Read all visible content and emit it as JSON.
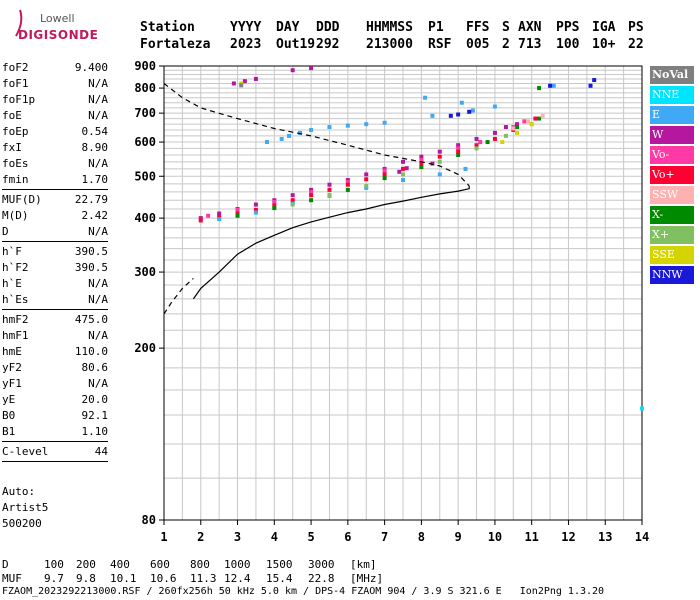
{
  "logo": {
    "line1": "Lowell",
    "line2": "DIGISONDE"
  },
  "header": {
    "labels": [
      "Station",
      "YYYY",
      "DAY",
      "DDD",
      "HHMMSS",
      "P1",
      "FFS",
      "S",
      "AXN",
      "PPS",
      "IGA",
      "PS"
    ],
    "values": [
      "Fortaleza",
      "2023",
      "Out19",
      "292",
      "213000",
      "RSF",
      "005",
      "2",
      "713",
      "100",
      "10+",
      "22"
    ]
  },
  "params": {
    "group1": [
      {
        "k": "foF2",
        "v": "9.400"
      },
      {
        "k": "foF1",
        "v": "N/A"
      },
      {
        "k": "foF1p",
        "v": "N/A"
      },
      {
        "k": "foE",
        "v": "N/A"
      },
      {
        "k": "foEp",
        "v": "0.54"
      },
      {
        "k": "fxI",
        "v": "8.90"
      },
      {
        "k": "foEs",
        "v": "N/A"
      },
      {
        "k": "fmin",
        "v": "1.70"
      }
    ],
    "group2": [
      {
        "k": "MUF(D)",
        "v": "22.79"
      },
      {
        "k": "M(D)",
        "v": "2.42"
      },
      {
        "k": "D",
        "v": "N/A"
      }
    ],
    "group3": [
      {
        "k": "h`F",
        "v": "390.5"
      },
      {
        "k": "h`F2",
        "v": "390.5"
      },
      {
        "k": "h`E",
        "v": "N/A"
      },
      {
        "k": "h`Es",
        "v": "N/A"
      }
    ],
    "group4": [
      {
        "k": "hmF2",
        "v": "475.0"
      },
      {
        "k": "hmF1",
        "v": "N/A"
      },
      {
        "k": "hmE",
        "v": "110.0"
      },
      {
        "k": "yF2",
        "v": "80.6"
      },
      {
        "k": "yF1",
        "v": "N/A"
      },
      {
        "k": "yE",
        "v": "20.0"
      },
      {
        "k": "B0",
        "v": "92.1"
      },
      {
        "k": "B1",
        "v": "1.10"
      }
    ],
    "group5": [
      {
        "k": "C-level",
        "v": "44"
      }
    ]
  },
  "auto": {
    "line1": "Auto:",
    "line2": "Artist5",
    "line3": "500200"
  },
  "legend": [
    {
      "label": "NoVal",
      "color": "#7f7f7f"
    },
    {
      "label": "NNE",
      "color": "#00e5ff"
    },
    {
      "label": "E",
      "color": "#3fa9f5"
    },
    {
      "label": "W",
      "color": "#b5179e"
    },
    {
      "label": "Vo-",
      "color": "#ff3aa6"
    },
    {
      "label": "Vo+",
      "color": "#ff0033"
    },
    {
      "label": "SSW",
      "color": "#ffb0b0"
    },
    {
      "label": "X-",
      "color": "#008a00"
    },
    {
      "label": "X+",
      "color": "#80c060"
    },
    {
      "label": "SSE",
      "color": "#d4d400"
    },
    {
      "label": "NNW",
      "color": "#1a18d8"
    }
  ],
  "footer": {
    "row_d_label": "D",
    "row_d_values": [
      "100",
      "200",
      "400",
      "600",
      "800",
      "1000",
      "1500",
      "3000"
    ],
    "row_d_unit": "[km]",
    "row_muf_label": "MUF",
    "row_muf_values": [
      "9.7",
      "9.8",
      "10.1",
      "10.6",
      "11.3",
      "12.4",
      "15.4",
      "22.8"
    ],
    "row_muf_unit": "[MHz]",
    "file_line": "FZAOM_2023292213000.RSF / 260fx256h 50 kHz 5.0 km / DPS-4 FZAOM 904 / 3.9 S 321.6 E   Ion2Png 1.3.20"
  },
  "chart_data": {
    "type": "scatter",
    "title": "",
    "xlabel": "",
    "ylabel": "",
    "xlim": [
      1,
      14
    ],
    "ylim": [
      80,
      900
    ],
    "x_scale": "linear",
    "y_scale": "log",
    "x_ticks": [
      1,
      2,
      3,
      4,
      5,
      6,
      7,
      8,
      9,
      10,
      11,
      12,
      13,
      14
    ],
    "y_ticks": [
      80,
      200,
      300,
      400,
      500,
      600,
      700,
      800,
      900
    ],
    "grid": true,
    "series": [
      {
        "name": "W",
        "color": "#b5179e",
        "points": [
          [
            2.0,
            400
          ],
          [
            2.5,
            410
          ],
          [
            3.0,
            420
          ],
          [
            3.5,
            430
          ],
          [
            4.0,
            440
          ],
          [
            4.5,
            452
          ],
          [
            5.0,
            465
          ],
          [
            5.5,
            478
          ],
          [
            6.0,
            490
          ],
          [
            6.5,
            505
          ],
          [
            7.0,
            520
          ],
          [
            7.5,
            540
          ],
          [
            8.0,
            555
          ],
          [
            8.5,
            570
          ],
          [
            9.0,
            590
          ],
          [
            9.5,
            610
          ],
          [
            10.0,
            630
          ],
          [
            10.3,
            650
          ],
          [
            2.9,
            820
          ],
          [
            3.2,
            830
          ],
          [
            3.5,
            840
          ],
          [
            4.5,
            880
          ],
          [
            5.0,
            890
          ],
          [
            7.4,
            512
          ],
          [
            7.6,
            522
          ],
          [
            8.3,
            535
          ],
          [
            10.6,
            660
          ]
        ]
      },
      {
        "name": "Vo-",
        "color": "#ff3aa6",
        "points": [
          [
            2.2,
            405
          ],
          [
            3.0,
            418
          ],
          [
            4.0,
            436
          ],
          [
            5.0,
            460
          ],
          [
            6.0,
            485
          ],
          [
            7.0,
            515
          ],
          [
            8.0,
            545
          ],
          [
            9.0,
            580
          ],
          [
            9.6,
            600
          ],
          [
            10.5,
            650
          ],
          [
            10.8,
            670
          ]
        ]
      },
      {
        "name": "Vo+",
        "color": "#ff0033",
        "points": [
          [
            2.0,
            395
          ],
          [
            2.5,
            402
          ],
          [
            3.0,
            410
          ],
          [
            3.5,
            418
          ],
          [
            4.0,
            428
          ],
          [
            4.5,
            440
          ],
          [
            5.0,
            452
          ],
          [
            5.5,
            465
          ],
          [
            6.0,
            478
          ],
          [
            6.5,
            492
          ],
          [
            7.0,
            505
          ],
          [
            7.5,
            520
          ],
          [
            8.0,
            535
          ],
          [
            8.5,
            555
          ],
          [
            9.0,
            570
          ],
          [
            9.5,
            590
          ],
          [
            10.0,
            610
          ],
          [
            10.5,
            640
          ],
          [
            11.1,
            680
          ]
        ]
      },
      {
        "name": "E",
        "color": "#3fa9f5",
        "points": [
          [
            2.5,
            398
          ],
          [
            3.5,
            412
          ],
          [
            4.5,
            432
          ],
          [
            5.5,
            452
          ],
          [
            6.5,
            470
          ],
          [
            7.5,
            490
          ],
          [
            8.5,
            505
          ],
          [
            9.2,
            520
          ],
          [
            4.4,
            620
          ],
          [
            4.7,
            630
          ],
          [
            5.0,
            640
          ],
          [
            5.5,
            650
          ],
          [
            6.0,
            655
          ],
          [
            6.5,
            660
          ],
          [
            7.0,
            665
          ],
          [
            3.8,
            600
          ],
          [
            4.2,
            610
          ],
          [
            8.1,
            760
          ],
          [
            9.1,
            740
          ],
          [
            8.3,
            690
          ],
          [
            9.4,
            710
          ],
          [
            10.0,
            725
          ],
          [
            11.6,
            810
          ]
        ]
      },
      {
        "name": "X-",
        "color": "#008a00",
        "points": [
          [
            3.0,
            405
          ],
          [
            4.0,
            422
          ],
          [
            5.0,
            440
          ],
          [
            6.0,
            465
          ],
          [
            7.0,
            495
          ],
          [
            8.0,
            525
          ],
          [
            9.0,
            560
          ],
          [
            9.8,
            600
          ],
          [
            10.6,
            650
          ],
          [
            11.2,
            680
          ],
          [
            11.2,
            800
          ]
        ]
      },
      {
        "name": "X+",
        "color": "#80c060",
        "points": [
          [
            4.5,
            430
          ],
          [
            5.5,
            450
          ],
          [
            6.5,
            475
          ],
          [
            7.5,
            505
          ],
          [
            8.5,
            540
          ],
          [
            9.5,
            580
          ],
          [
            10.3,
            620
          ],
          [
            11.0,
            660
          ]
        ]
      },
      {
        "name": "SSW",
        "color": "#ffb0b0",
        "points": [
          [
            10.5,
            645
          ],
          [
            10.9,
            670
          ],
          [
            11.3,
            690
          ]
        ]
      },
      {
        "name": "SSE",
        "color": "#d4d400",
        "points": [
          [
            10.2,
            600
          ],
          [
            10.6,
            630
          ],
          [
            11.0,
            660
          ],
          [
            3.1,
            820
          ]
        ]
      },
      {
        "name": "NNW",
        "color": "#1a18d8",
        "points": [
          [
            8.8,
            690
          ],
          [
            9.0,
            695
          ],
          [
            9.3,
            705
          ],
          [
            11.5,
            810
          ],
          [
            12.6,
            810
          ],
          [
            12.7,
            835
          ]
        ]
      },
      {
        "name": "NNE",
        "color": "#00e5ff",
        "points": [
          [
            14.0,
            145
          ]
        ]
      },
      {
        "name": "NoVal",
        "color": "#7f7f7f",
        "points": [
          [
            3.1,
            812
          ]
        ]
      }
    ],
    "profile_solid": [
      [
        1.8,
        260
      ],
      [
        2.0,
        275
      ],
      [
        2.5,
        300
      ],
      [
        3.0,
        330
      ],
      [
        3.5,
        350
      ],
      [
        4.0,
        365
      ],
      [
        4.5,
        380
      ],
      [
        5.0,
        392
      ],
      [
        5.5,
        402
      ],
      [
        6.0,
        412
      ],
      [
        6.5,
        420
      ],
      [
        7.0,
        430
      ],
      [
        7.5,
        438
      ],
      [
        8.0,
        447
      ],
      [
        8.5,
        455
      ],
      [
        9.0,
        462
      ],
      [
        9.3,
        468
      ],
      [
        9.3,
        475
      ]
    ],
    "profile_dashed_lower": [
      [
        1.0,
        240
      ],
      [
        1.2,
        255
      ],
      [
        1.5,
        275
      ],
      [
        1.8,
        290
      ]
    ],
    "profile_dashed_upper": [
      [
        1.0,
        820
      ],
      [
        1.5,
        760
      ],
      [
        2.0,
        720
      ],
      [
        3.0,
        680
      ],
      [
        4.0,
        645
      ],
      [
        5.0,
        620
      ],
      [
        6.0,
        590
      ],
      [
        7.0,
        560
      ],
      [
        8.0,
        540
      ],
      [
        8.5,
        528
      ],
      [
        9.0,
        505
      ],
      [
        9.3,
        475
      ]
    ]
  }
}
